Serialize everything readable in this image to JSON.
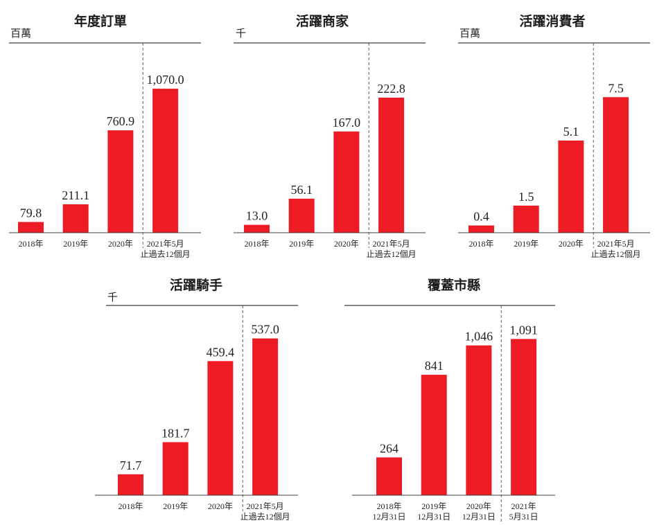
{
  "colors": {
    "bar": "#ED1C24"
  },
  "chart_data": [
    {
      "type": "bar",
      "title": "年度訂單",
      "unit": "百萬",
      "categories": [
        [
          "2018年"
        ],
        [
          "2019年"
        ],
        [
          "2020年"
        ],
        [
          "2021年5月",
          "止過去12個月"
        ]
      ],
      "values": [
        79.8,
        211.1,
        760.9,
        1070.0
      ],
      "data_labels": [
        "79.8",
        "211.1",
        "760.9",
        "1,070.0"
      ],
      "ylim": [
        0,
        1410
      ]
    },
    {
      "type": "bar",
      "title": "活躍商家",
      "unit": "千",
      "categories": [
        [
          "2018年"
        ],
        [
          "2019年"
        ],
        [
          "2020年"
        ],
        [
          "2021年5月",
          "止過去12個月"
        ]
      ],
      "values": [
        13.0,
        56.1,
        167.0,
        222.8
      ],
      "data_labels": [
        "13.0",
        "56.1",
        "167.0",
        "222.8"
      ],
      "ylim": [
        0,
        313
      ]
    },
    {
      "type": "bar",
      "title": "活躍消費者",
      "unit": "百萬",
      "categories": [
        [
          "2018年"
        ],
        [
          "2019年"
        ],
        [
          "2020年"
        ],
        [
          "2021年5月",
          "止過去12個月"
        ]
      ],
      "values": [
        0.4,
        1.5,
        5.1,
        7.5
      ],
      "data_labels": [
        "0.4",
        "1.5",
        "5.1",
        "7.5"
      ],
      "ylim": [
        0,
        10.5
      ]
    },
    {
      "type": "bar",
      "title": "活躍騎手",
      "unit": "千",
      "categories": [
        [
          "2018年"
        ],
        [
          "2019年"
        ],
        [
          "2020年"
        ],
        [
          "2021年5月",
          "止過去12個月"
        ]
      ],
      "values": [
        71.7,
        181.7,
        459.4,
        537.0
      ],
      "data_labels": [
        "71.7",
        "181.7",
        "459.4",
        "537.0"
      ],
      "ylim": [
        0,
        650
      ]
    },
    {
      "type": "bar",
      "title": "覆蓋市縣",
      "categories": [
        [
          "2018年",
          "12月31日"
        ],
        [
          "2019年",
          "12月31日"
        ],
        [
          "2020年",
          "12月31日"
        ],
        [
          "2021年",
          "5月31日"
        ]
      ],
      "values": [
        264,
        841,
        1046,
        1091
      ],
      "data_labels": [
        "264",
        "841",
        "1,046",
        "1,091"
      ],
      "ylim": [
        0,
        1325
      ]
    }
  ]
}
